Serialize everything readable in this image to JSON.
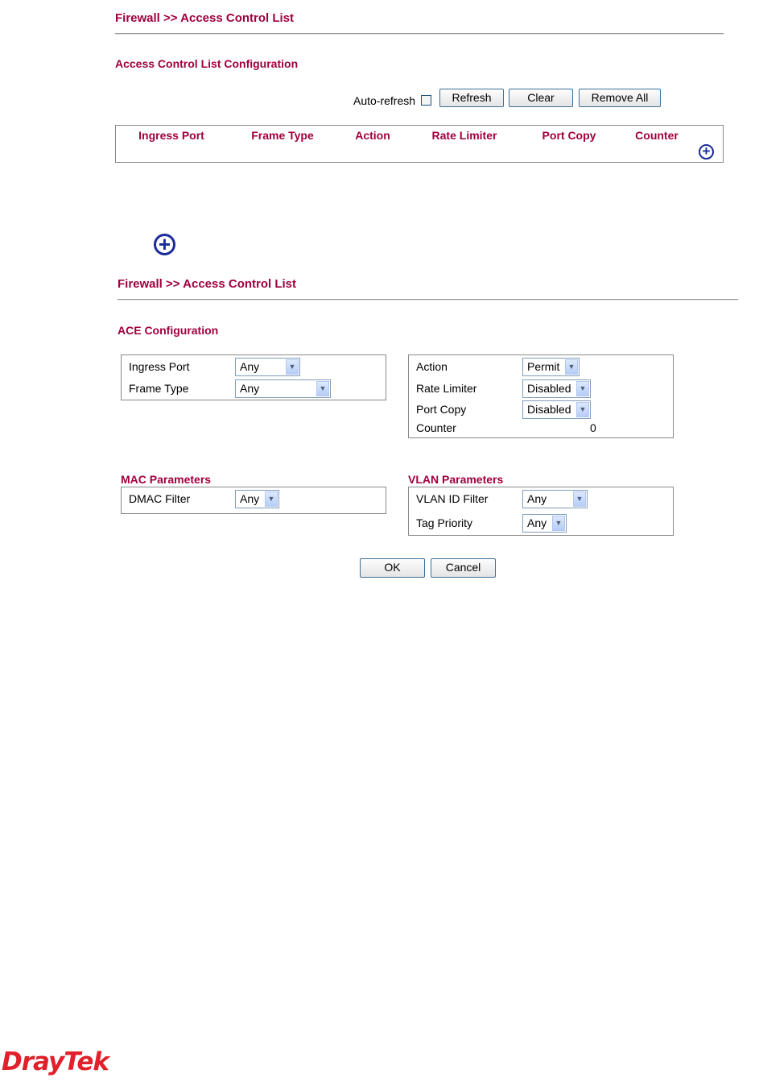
{
  "list_page": {
    "title": "Firewall >> Access Control List",
    "subtitle": "Access Control List Configuration",
    "auto_refresh_label": "Auto-refresh",
    "auto_refresh_checked": false,
    "buttons": {
      "refresh": "Refresh",
      "clear": "Clear",
      "remove_all": "Remove All"
    },
    "columns": [
      "Ingress Port",
      "Frame Type",
      "Action",
      "Rate Limiter",
      "Port Copy",
      "Counter"
    ],
    "add_icon": "plus-circle-icon"
  },
  "standalone_add_icon": "plus-circle-icon",
  "ace_page": {
    "title": "Firewall >> Access Control List",
    "subtitle": "ACE Configuration",
    "ingress_port": {
      "label": "Ingress Port",
      "value": "Any"
    },
    "frame_type": {
      "label": "Frame Type",
      "value": "Any"
    },
    "action": {
      "label": "Action",
      "value": "Permit"
    },
    "rate_limiter": {
      "label": "Rate Limiter",
      "value": "Disabled"
    },
    "port_copy": {
      "label": "Port Copy",
      "value": "Disabled"
    },
    "counter": {
      "label": "Counter",
      "value": "0"
    },
    "mac_title": "MAC Parameters",
    "dmac_filter": {
      "label": "DMAC Filter",
      "value": "Any"
    },
    "vlan_title": "VLAN Parameters",
    "vlan_id_filter": {
      "label": "VLAN ID Filter",
      "value": "Any"
    },
    "tag_priority": {
      "label": "Tag Priority",
      "value": "Any"
    },
    "ok": "OK",
    "cancel": "Cancel"
  },
  "logo": "DrayTek",
  "colors": {
    "heading": "#a0003c",
    "logo": "#e0202a",
    "icon": "#1a2a9a"
  }
}
